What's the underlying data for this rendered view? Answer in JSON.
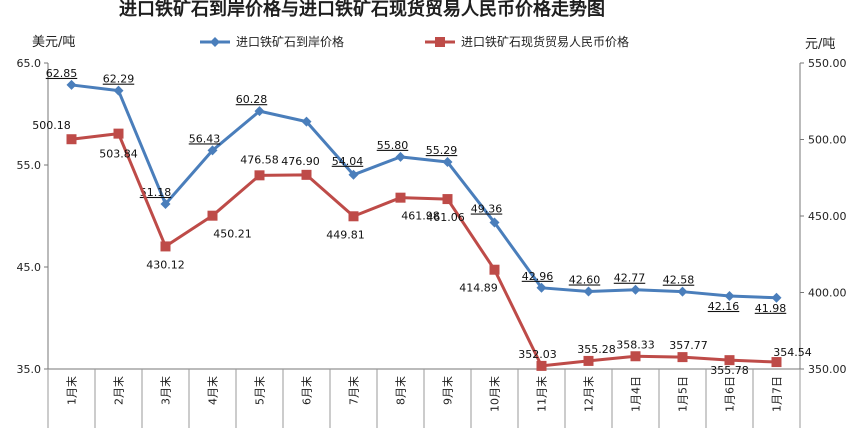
{
  "chart_data": {
    "type": "line",
    "title": "进口铁矿石到岸价格与进口铁矿石现货贸易人民币价格走势图",
    "ylabel_left": "美元/吨",
    "ylabel_right": "元/吨",
    "categories": [
      "1月末",
      "2月末",
      "3月末",
      "4月末",
      "5月末",
      "6月末",
      "7月末",
      "8月末",
      "9月末",
      "10月末",
      "11月末",
      "12月末",
      "1月4日",
      "1月5日",
      "1月6日",
      "1月7日"
    ],
    "y_left": {
      "min": 35.0,
      "max": 65.0,
      "ticks": [
        "35.0",
        "45.0",
        "55.0",
        "65.0"
      ]
    },
    "y_right": {
      "min": 350.0,
      "max": 550.0,
      "ticks": [
        "350.00",
        "400.00",
        "450.00",
        "500.00",
        "550.00"
      ]
    },
    "legend_position": "top",
    "grid": false,
    "series": [
      {
        "name": "进口铁矿石到岸价格",
        "axis": "left",
        "color": "#4a7ebb",
        "marker": "diamond",
        "values": [
          62.85,
          62.29,
          51.18,
          56.43,
          60.28,
          59.25,
          54.04,
          55.8,
          55.29,
          49.36,
          42.96,
          42.6,
          42.77,
          42.58,
          42.16,
          41.98
        ],
        "labels": [
          "62.85",
          "62.29",
          "51.18",
          "56.43",
          "60.28",
          "",
          "54.04",
          "55.80",
          "55.29",
          "49.36",
          "42.96",
          "42.60",
          "42.77",
          "42.58",
          "42.16",
          "41.98"
        ]
      },
      {
        "name": "进口铁矿石现货贸易人民币价格",
        "axis": "right",
        "color": "#be4b48",
        "marker": "square",
        "values": [
          500.18,
          503.84,
          430.12,
          450.21,
          476.58,
          476.9,
          449.81,
          461.98,
          461.06,
          414.89,
          352.03,
          355.28,
          358.33,
          357.77,
          355.78,
          354.54
        ],
        "labels": [
          "500.18",
          "503.84",
          "430.12",
          "450.21",
          "476.58",
          "476.90",
          "449.81",
          "461.98",
          "461.06",
          "414.89",
          "352.03",
          "355.28",
          "358.33",
          "357.77",
          "355.78",
          "354.54"
        ]
      }
    ]
  }
}
